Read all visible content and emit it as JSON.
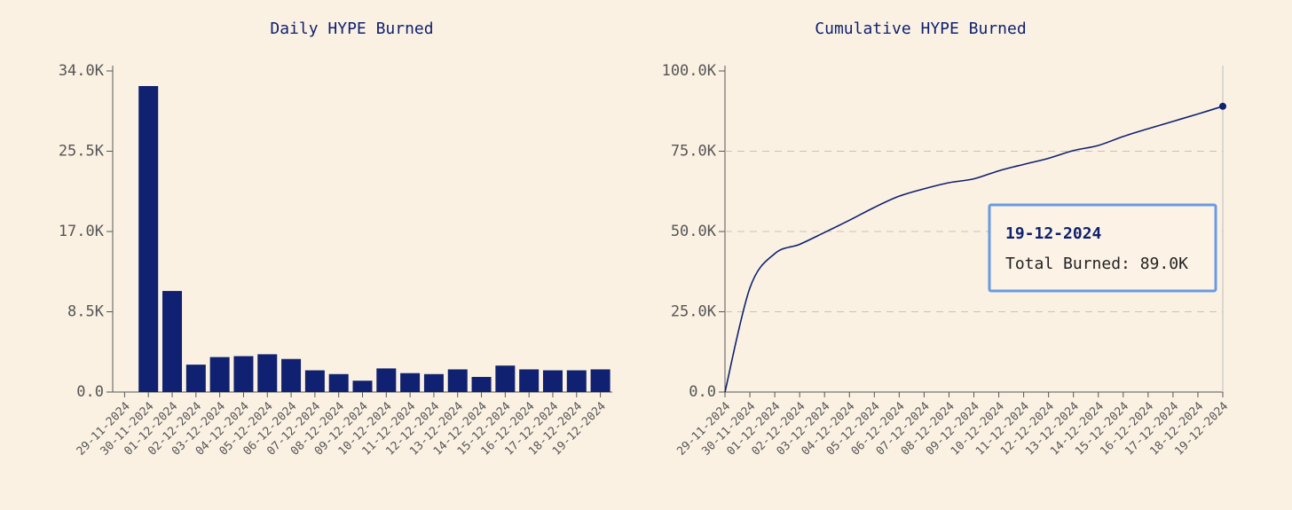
{
  "chart_data": [
    {
      "type": "bar",
      "title": "Daily HYPE Burned",
      "color": "#0f2170",
      "categories": [
        "29-11-2024",
        "30-11-2024",
        "01-12-2024",
        "02-12-2024",
        "03-12-2024",
        "04-12-2024",
        "05-12-2024",
        "06-12-2024",
        "07-12-2024",
        "08-12-2024",
        "09-12-2024",
        "10-12-2024",
        "11-12-2024",
        "12-12-2024",
        "13-12-2024",
        "14-12-2024",
        "15-12-2024",
        "16-12-2024",
        "17-12-2024",
        "18-12-2024",
        "19-12-2024"
      ],
      "values": [
        0,
        32400,
        10700,
        2900,
        3700,
        3800,
        4000,
        3500,
        2300,
        1900,
        1200,
        2500,
        2000,
        1900,
        2400,
        1600,
        2800,
        2400,
        2300,
        2300,
        2400
      ],
      "ylim": [
        0,
        34000
      ],
      "yticks": [
        {
          "value": 0,
          "label": "0.0"
        },
        {
          "value": 8500,
          "label": "8.5K"
        },
        {
          "value": 17000,
          "label": "17.0K"
        },
        {
          "value": 25500,
          "label": "25.5K"
        },
        {
          "value": 34000,
          "label": "34.0K"
        }
      ],
      "grid": false
    },
    {
      "type": "line",
      "title": "Cumulative HYPE Burned",
      "color": "#0f2170",
      "categories": [
        "29-11-2024",
        "30-11-2024",
        "01-12-2024",
        "02-12-2024",
        "03-12-2024",
        "04-12-2024",
        "05-12-2024",
        "06-12-2024",
        "07-12-2024",
        "08-12-2024",
        "09-12-2024",
        "10-12-2024",
        "11-12-2024",
        "12-12-2024",
        "13-12-2024",
        "14-12-2024",
        "15-12-2024",
        "16-12-2024",
        "17-12-2024",
        "18-12-2024",
        "19-12-2024"
      ],
      "values": [
        0,
        32400,
        43100,
        46000,
        49700,
        53500,
        57500,
        61000,
        63300,
        65200,
        66400,
        68900,
        70900,
        72800,
        75200,
        76800,
        79600,
        82000,
        84300,
        86600,
        89000
      ],
      "ylim": [
        0,
        100000
      ],
      "yticks": [
        {
          "value": 0,
          "label": "0.0"
        },
        {
          "value": 25000,
          "label": "25.0K"
        },
        {
          "value": 50000,
          "label": "50.0K"
        },
        {
          "value": 75000,
          "label": "75.0K"
        },
        {
          "value": 100000,
          "label": "100.0K"
        }
      ],
      "grid": true,
      "tooltip": {
        "title": "19-12-2024",
        "text": "Total Burned: 89.0K"
      }
    }
  ]
}
